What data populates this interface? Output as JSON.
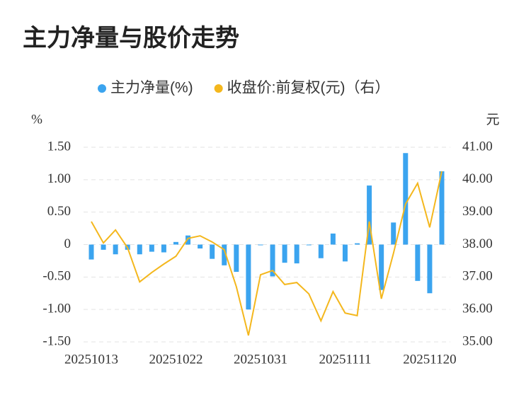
{
  "chart_data": {
    "type": "bar_line",
    "title": "主力净量与股价走势",
    "y_label": "%",
    "y2_label": "元",
    "categories": [
      "20251013",
      null,
      null,
      null,
      null,
      null,
      null,
      "20251022",
      null,
      null,
      null,
      null,
      null,
      null,
      "20251031",
      null,
      null,
      null,
      null,
      null,
      null,
      "20251111",
      null,
      null,
      null,
      null,
      null,
      null,
      "20251120",
      null
    ],
    "series": [
      {
        "name": "主力净量(%)",
        "type": "bar",
        "color": "#3ba4ef",
        "axis": "y",
        "values": [
          -0.23,
          -0.08,
          -0.15,
          -0.08,
          -0.15,
          -0.11,
          -0.12,
          0.04,
          0.14,
          -0.06,
          -0.22,
          -0.32,
          -0.42,
          -1.0,
          -0.01,
          -0.49,
          -0.28,
          -0.29,
          -0.01,
          -0.21,
          0.17,
          -0.26,
          0.02,
          0.91,
          -0.7,
          0.34,
          1.41,
          -0.56,
          -0.75,
          1.13
        ]
      },
      {
        "name": "收盘价:前复权(元)（右）",
        "type": "line",
        "color": "#f4b71d",
        "axis": "y2",
        "values": [
          38.71,
          38.05,
          38.45,
          37.9,
          36.85,
          37.14,
          37.4,
          37.64,
          38.19,
          38.27,
          38.08,
          37.84,
          36.7,
          35.2,
          37.07,
          37.2,
          36.77,
          36.83,
          36.48,
          35.65,
          36.55,
          35.89,
          35.81,
          38.71,
          36.33,
          37.73,
          39.25,
          39.89,
          38.53,
          40.26
        ]
      }
    ],
    "ylim": [
      -1.5,
      1.5
    ],
    "yticks": [
      {
        "value": -1.5,
        "label": "-1.50"
      },
      {
        "value": -1,
        "label": "-1.00"
      },
      {
        "value": -0.5,
        "label": "-0.50"
      },
      0,
      {
        "value": 0.5,
        "label": "0.50"
      },
      {
        "value": 1,
        "label": "1.00"
      },
      {
        "value": 1.5,
        "label": "1.50"
      }
    ],
    "y2lim": [
      35,
      41
    ],
    "y2ticks": [
      {
        "value": 35,
        "label": "35.00"
      },
      {
        "value": 36,
        "label": "36.00"
      },
      {
        "value": 37,
        "label": "37.00"
      },
      {
        "value": 38,
        "label": "38.00"
      },
      {
        "value": 39,
        "label": "39.00"
      },
      {
        "value": 40,
        "label": "40.00"
      },
      {
        "value": 41,
        "label": "41.00"
      }
    ],
    "grid": true,
    "legend": "top"
  }
}
